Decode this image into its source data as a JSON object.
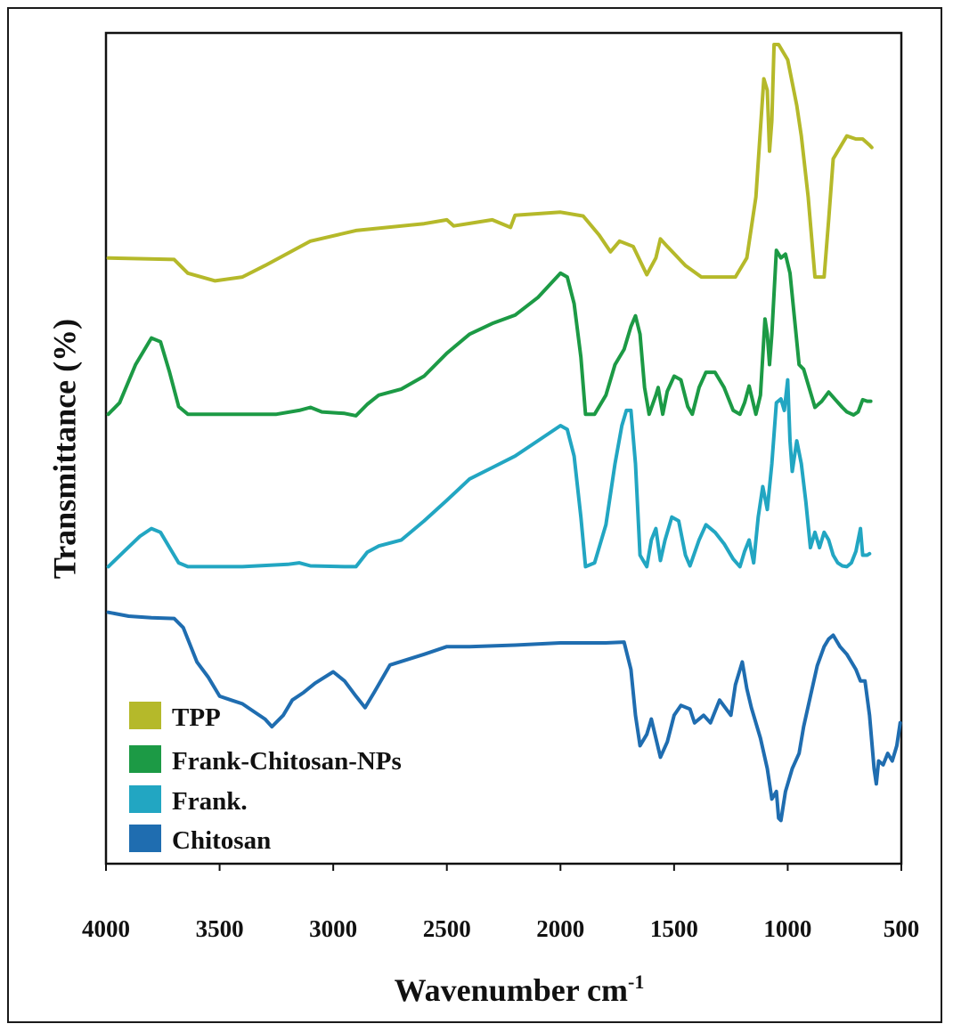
{
  "chart_data": {
    "type": "line",
    "title": "",
    "xlabel": "Wavenumber cm",
    "xlabel_superscript": "-1",
    "ylabel": "Transmittance (%)",
    "xlim": [
      4000,
      500
    ],
    "ylim": [
      0,
      100
    ],
    "x_inverted": true,
    "yticks_shown": false,
    "grid": false,
    "legend_position": "bottom-left",
    "xticks": [
      4000,
      3500,
      3000,
      2500,
      2000,
      1500,
      1000,
      500
    ],
    "series": [
      {
        "name": "TPP",
        "color": "#b5b92a",
        "points": [
          [
            3990,
            72
          ],
          [
            3700,
            71.8
          ],
          [
            3640,
            70
          ],
          [
            3520,
            69
          ],
          [
            3400,
            69.5
          ],
          [
            3300,
            71
          ],
          [
            3100,
            74.2
          ],
          [
            2900,
            75.6
          ],
          [
            2600,
            76.5
          ],
          [
            2500,
            77
          ],
          [
            2470,
            76.2
          ],
          [
            2300,
            77
          ],
          [
            2220,
            76
          ],
          [
            2200,
            77.6
          ],
          [
            2000,
            78
          ],
          [
            1900,
            77.5
          ],
          [
            1830,
            75
          ],
          [
            1780,
            72.8
          ],
          [
            1740,
            74.2
          ],
          [
            1680,
            73.5
          ],
          [
            1620,
            69.8
          ],
          [
            1580,
            72
          ],
          [
            1560,
            74.5
          ],
          [
            1530,
            73.5
          ],
          [
            1450,
            71
          ],
          [
            1380,
            69.5
          ],
          [
            1230,
            69.5
          ],
          [
            1180,
            72
          ],
          [
            1140,
            80
          ],
          [
            1105,
            95.5
          ],
          [
            1090,
            94
          ],
          [
            1080,
            86
          ],
          [
            1070,
            90
          ],
          [
            1060,
            100
          ],
          [
            1040,
            100
          ],
          [
            1000,
            98
          ],
          [
            960,
            92
          ],
          [
            940,
            88
          ],
          [
            910,
            80
          ],
          [
            880,
            69.5
          ],
          [
            840,
            69.5
          ],
          [
            820,
            77
          ],
          [
            800,
            85
          ],
          [
            740,
            88
          ],
          [
            700,
            87.6
          ],
          [
            670,
            87.6
          ],
          [
            640,
            86.8
          ],
          [
            630,
            86.5
          ]
        ]
      },
      {
        "name": "Frank-Chitosan-NPs",
        "color": "#1c9a45",
        "points": [
          [
            3990,
            51.5
          ],
          [
            3940,
            53
          ],
          [
            3870,
            58
          ],
          [
            3800,
            61.5
          ],
          [
            3760,
            61
          ],
          [
            3720,
            57
          ],
          [
            3680,
            52.5
          ],
          [
            3640,
            51.5
          ],
          [
            3400,
            51.5
          ],
          [
            3250,
            51.5
          ],
          [
            3150,
            52
          ],
          [
            3100,
            52.4
          ],
          [
            3050,
            51.8
          ],
          [
            2950,
            51.6
          ],
          [
            2900,
            51.3
          ],
          [
            2850,
            52.8
          ],
          [
            2800,
            54
          ],
          [
            2700,
            54.8
          ],
          [
            2600,
            56.5
          ],
          [
            2500,
            59.5
          ],
          [
            2400,
            62
          ],
          [
            2300,
            63.4
          ],
          [
            2200,
            64.5
          ],
          [
            2100,
            66.8
          ],
          [
            2000,
            70
          ],
          [
            1970,
            69.5
          ],
          [
            1940,
            66
          ],
          [
            1910,
            59
          ],
          [
            1890,
            51.5
          ],
          [
            1850,
            51.5
          ],
          [
            1800,
            54
          ],
          [
            1760,
            58
          ],
          [
            1720,
            60
          ],
          [
            1690,
            63
          ],
          [
            1670,
            64.4
          ],
          [
            1650,
            62
          ],
          [
            1630,
            55
          ],
          [
            1610,
            51.5
          ],
          [
            1580,
            54
          ],
          [
            1570,
            55
          ],
          [
            1550,
            51.5
          ],
          [
            1530,
            54.5
          ],
          [
            1500,
            56.5
          ],
          [
            1470,
            56
          ],
          [
            1440,
            52.5
          ],
          [
            1420,
            51.5
          ],
          [
            1390,
            55
          ],
          [
            1360,
            57
          ],
          [
            1320,
            57
          ],
          [
            1280,
            55
          ],
          [
            1240,
            52
          ],
          [
            1210,
            51.5
          ],
          [
            1190,
            53
          ],
          [
            1170,
            55.2
          ],
          [
            1140,
            51.5
          ],
          [
            1120,
            54
          ],
          [
            1100,
            64
          ],
          [
            1090,
            62
          ],
          [
            1080,
            58
          ],
          [
            1070,
            62
          ],
          [
            1050,
            73
          ],
          [
            1030,
            72
          ],
          [
            1010,
            72.5
          ],
          [
            990,
            70
          ],
          [
            970,
            64
          ],
          [
            950,
            58
          ],
          [
            930,
            57.4
          ],
          [
            900,
            54.4
          ],
          [
            880,
            52.4
          ],
          [
            850,
            53.2
          ],
          [
            820,
            54.4
          ],
          [
            790,
            53.4
          ],
          [
            760,
            52.4
          ],
          [
            740,
            51.8
          ],
          [
            710,
            51.4
          ],
          [
            690,
            51.8
          ],
          [
            670,
            53.4
          ],
          [
            650,
            53.2
          ],
          [
            635,
            53.2
          ]
        ]
      },
      {
        "name": "Frank.",
        "color": "#22a6c2",
        "points": [
          [
            3990,
            31.5
          ],
          [
            3920,
            33.5
          ],
          [
            3850,
            35.5
          ],
          [
            3800,
            36.5
          ],
          [
            3760,
            36
          ],
          [
            3720,
            34
          ],
          [
            3680,
            32
          ],
          [
            3640,
            31.5
          ],
          [
            3400,
            31.5
          ],
          [
            3200,
            31.8
          ],
          [
            3150,
            32
          ],
          [
            3100,
            31.6
          ],
          [
            2950,
            31.5
          ],
          [
            2900,
            31.5
          ],
          [
            2850,
            33.4
          ],
          [
            2800,
            34.2
          ],
          [
            2700,
            35
          ],
          [
            2600,
            37.5
          ],
          [
            2500,
            40.2
          ],
          [
            2400,
            43
          ],
          [
            2300,
            44.5
          ],
          [
            2200,
            46
          ],
          [
            2100,
            48
          ],
          [
            2000,
            50
          ],
          [
            1970,
            49.5
          ],
          [
            1940,
            46
          ],
          [
            1910,
            38
          ],
          [
            1890,
            31.5
          ],
          [
            1850,
            32
          ],
          [
            1800,
            37
          ],
          [
            1760,
            45
          ],
          [
            1730,
            50
          ],
          [
            1710,
            52
          ],
          [
            1690,
            52
          ],
          [
            1670,
            45
          ],
          [
            1650,
            33
          ],
          [
            1620,
            31.5
          ],
          [
            1600,
            35
          ],
          [
            1580,
            36.5
          ],
          [
            1560,
            32.3
          ],
          [
            1540,
            35
          ],
          [
            1510,
            38
          ],
          [
            1480,
            37.5
          ],
          [
            1450,
            33
          ],
          [
            1430,
            31.6
          ],
          [
            1390,
            35
          ],
          [
            1360,
            37
          ],
          [
            1320,
            36
          ],
          [
            1280,
            34.5
          ],
          [
            1240,
            32.5
          ],
          [
            1210,
            31.5
          ],
          [
            1190,
            33.5
          ],
          [
            1170,
            35
          ],
          [
            1150,
            32
          ],
          [
            1130,
            38
          ],
          [
            1110,
            42
          ],
          [
            1090,
            39
          ],
          [
            1070,
            45
          ],
          [
            1050,
            53
          ],
          [
            1030,
            53.5
          ],
          [
            1015,
            52
          ],
          [
            1000,
            56
          ],
          [
            990,
            48
          ],
          [
            980,
            44
          ],
          [
            960,
            48
          ],
          [
            940,
            45
          ],
          [
            920,
            40
          ],
          [
            900,
            34
          ],
          [
            880,
            36
          ],
          [
            860,
            34
          ],
          [
            840,
            36
          ],
          [
            820,
            35
          ],
          [
            800,
            33
          ],
          [
            780,
            32
          ],
          [
            760,
            31.6
          ],
          [
            740,
            31.5
          ],
          [
            720,
            32
          ],
          [
            700,
            33.5
          ],
          [
            680,
            36.5
          ],
          [
            670,
            33
          ],
          [
            650,
            33
          ],
          [
            640,
            33.2
          ]
        ]
      },
      {
        "name": "Chitosan",
        "color": "#1f6db0",
        "points": [
          [
            3990,
            25.5
          ],
          [
            3900,
            25
          ],
          [
            3800,
            24.8
          ],
          [
            3700,
            24.7
          ],
          [
            3660,
            23.5
          ],
          [
            3600,
            19
          ],
          [
            3550,
            17
          ],
          [
            3500,
            14.5
          ],
          [
            3450,
            14
          ],
          [
            3400,
            13.5
          ],
          [
            3350,
            12.5
          ],
          [
            3300,
            11.5
          ],
          [
            3270,
            10.5
          ],
          [
            3220,
            12
          ],
          [
            3180,
            14
          ],
          [
            3130,
            15
          ],
          [
            3080,
            16.2
          ],
          [
            3000,
            17.7
          ],
          [
            2950,
            16.5
          ],
          [
            2900,
            14.5
          ],
          [
            2860,
            13
          ],
          [
            2820,
            15
          ],
          [
            2750,
            18.6
          ],
          [
            2600,
            20
          ],
          [
            2500,
            21
          ],
          [
            2400,
            21
          ],
          [
            2200,
            21.2
          ],
          [
            2000,
            21.5
          ],
          [
            1800,
            21.5
          ],
          [
            1720,
            21.6
          ],
          [
            1690,
            18
          ],
          [
            1670,
            12
          ],
          [
            1650,
            8
          ],
          [
            1620,
            9.5
          ],
          [
            1600,
            11.5
          ],
          [
            1580,
            9
          ],
          [
            1560,
            6.5
          ],
          [
            1530,
            8.5
          ],
          [
            1500,
            12
          ],
          [
            1470,
            13.3
          ],
          [
            1430,
            12.8
          ],
          [
            1410,
            11
          ],
          [
            1390,
            11.5
          ],
          [
            1370,
            12
          ],
          [
            1340,
            11
          ],
          [
            1300,
            14
          ],
          [
            1250,
            12
          ],
          [
            1230,
            16
          ],
          [
            1200,
            19
          ],
          [
            1180,
            15.5
          ],
          [
            1160,
            13
          ],
          [
            1120,
            9
          ],
          [
            1090,
            5
          ],
          [
            1070,
            1
          ],
          [
            1050,
            2
          ],
          [
            1040,
            -1.5
          ],
          [
            1030,
            -1.8
          ],
          [
            1010,
            2
          ],
          [
            980,
            5
          ],
          [
            950,
            7
          ],
          [
            930,
            10.5
          ],
          [
            900,
            14.5
          ],
          [
            870,
            18.5
          ],
          [
            840,
            21
          ],
          [
            820,
            22
          ],
          [
            800,
            22.5
          ],
          [
            770,
            21
          ],
          [
            740,
            20
          ],
          [
            700,
            18
          ],
          [
            680,
            16.5
          ],
          [
            660,
            16.5
          ],
          [
            640,
            12
          ],
          [
            620,
            5
          ],
          [
            610,
            3
          ],
          [
            600,
            6
          ],
          [
            580,
            5.5
          ],
          [
            560,
            7
          ],
          [
            540,
            6
          ],
          [
            520,
            8
          ],
          [
            505,
            11
          ]
        ]
      }
    ]
  }
}
